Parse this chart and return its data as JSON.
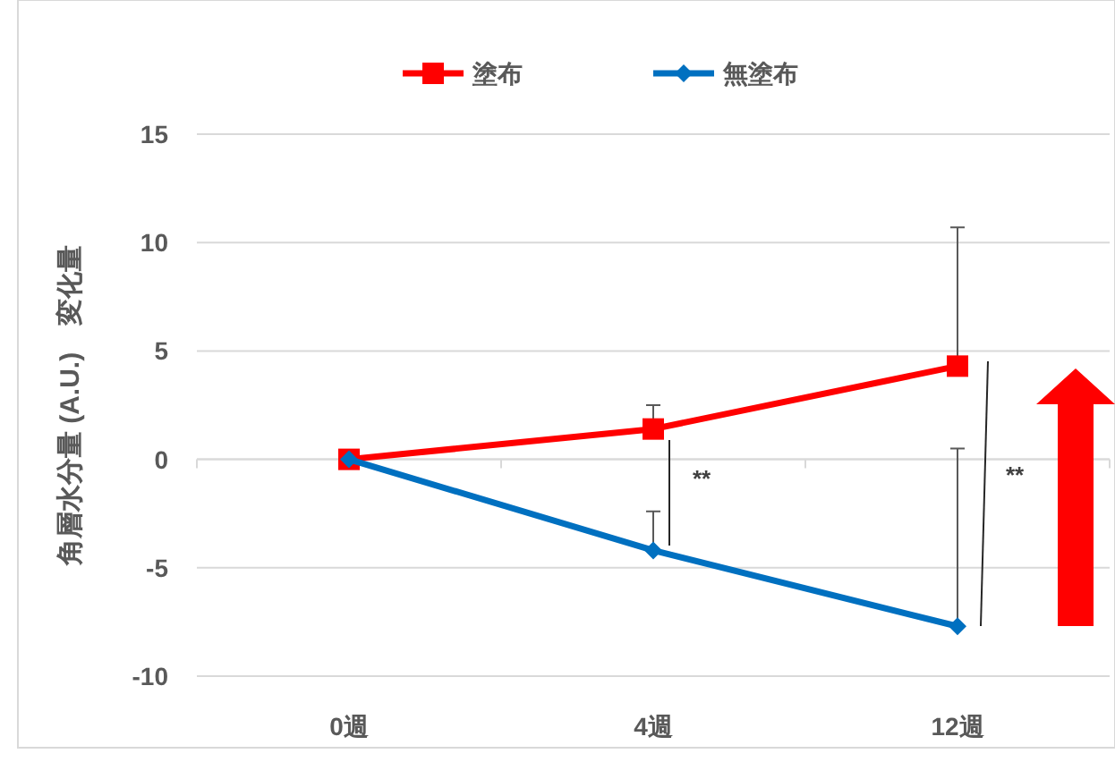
{
  "chart_data": {
    "type": "line",
    "ylabel": "角層水分量 (A.U.)　変化量",
    "categories": [
      "0週",
      "4週",
      "12週"
    ],
    "series": [
      {
        "name": "塗布",
        "color": "#ff0000",
        "marker": "square",
        "values": [
          0,
          1.4,
          4.3
        ],
        "errors": [
          null,
          [
            1.4,
            2.5
          ],
          [
            4.3,
            10.7
          ]
        ]
      },
      {
        "name": "無塗布",
        "color": "#0070c0",
        "marker": "diamond",
        "values": [
          0,
          -4.2,
          -7.7
        ],
        "errors": [
          null,
          [
            -4.2,
            -2.4
          ],
          [
            -7.7,
            0.5
          ]
        ]
      }
    ],
    "ylim": [
      -10,
      15
    ],
    "yticks": [
      -10,
      -5,
      0,
      5,
      10,
      15
    ],
    "grid": "y",
    "legend": "top",
    "annotations": [
      "**",
      "**"
    ]
  }
}
